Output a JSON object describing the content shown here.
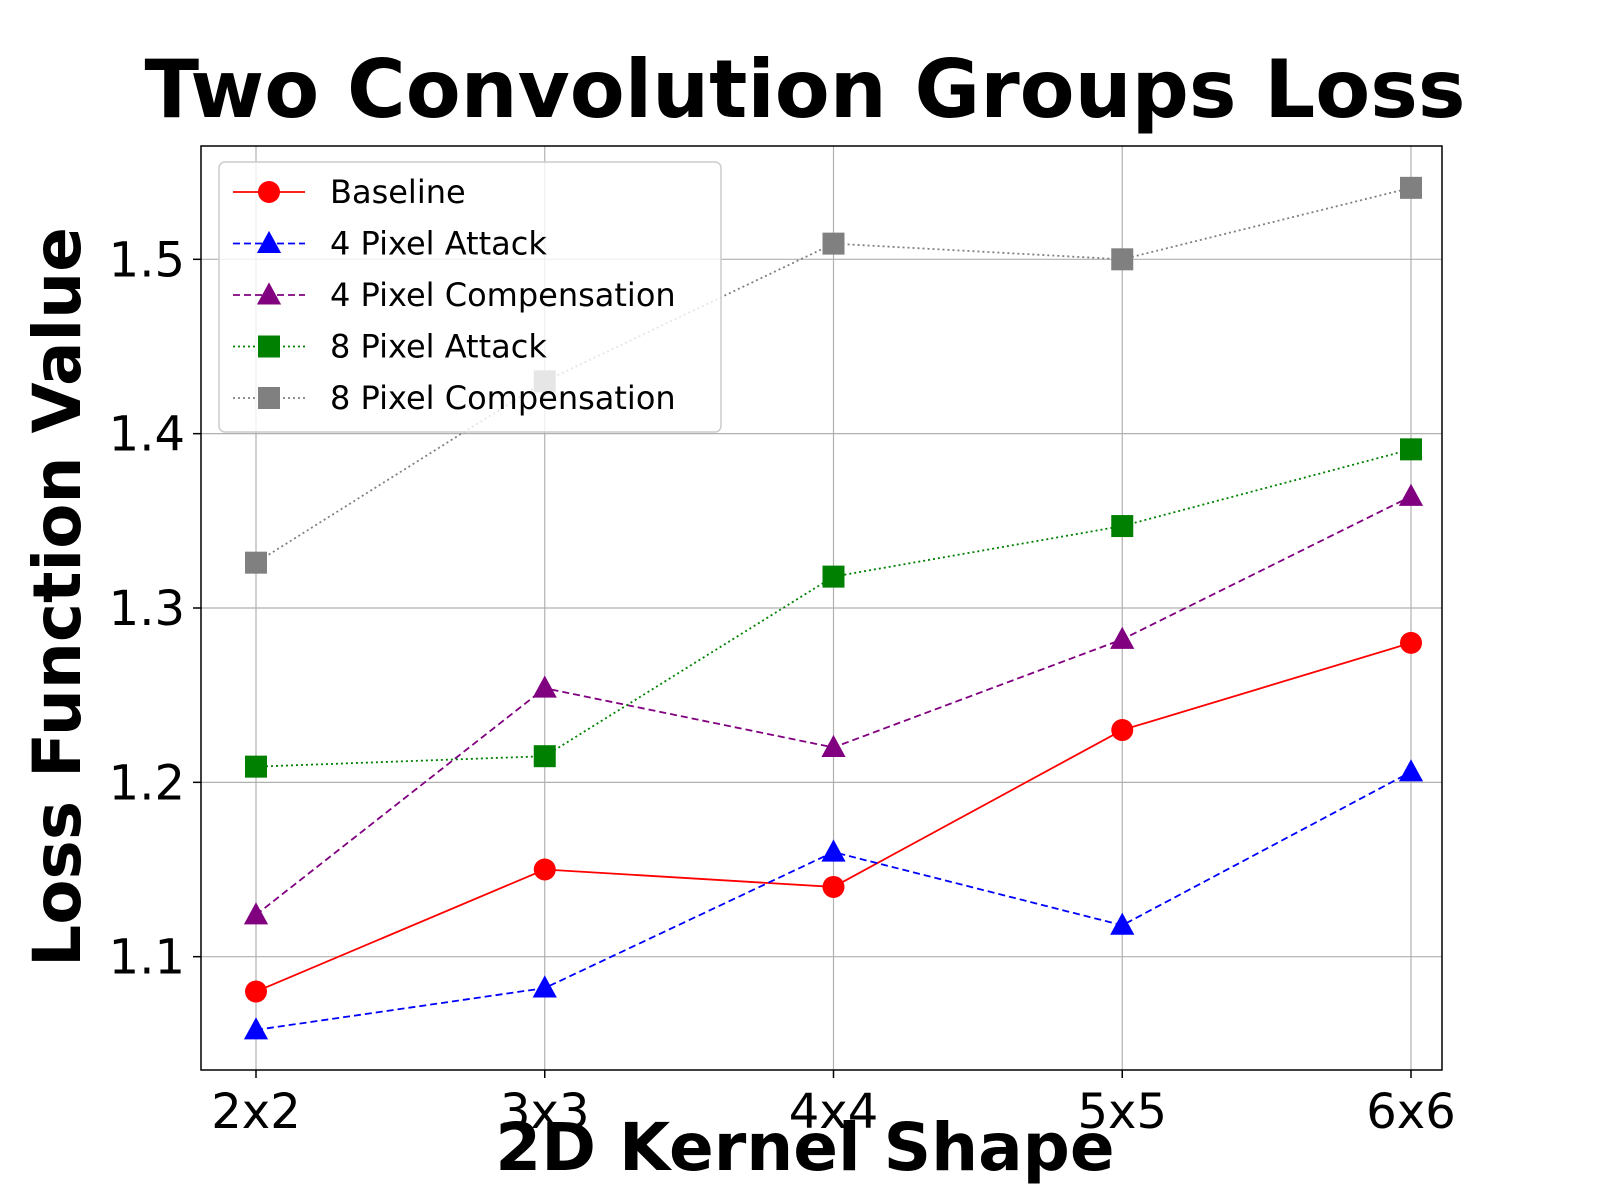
{
  "chart_data": {
    "type": "line",
    "title": "Two Convolution Groups Loss",
    "xlabel": "2D Kernel Shape",
    "ylabel": "Loss Function Value",
    "categories": [
      "2x2",
      "3x3",
      "4x4",
      "5x5",
      "6x6"
    ],
    "ylim": [
      1.035,
      1.565
    ],
    "yticks": [
      1.1,
      1.2,
      1.3,
      1.4,
      1.5
    ],
    "ytick_labels": [
      "1.1",
      "1.2",
      "1.3",
      "1.4",
      "1.5"
    ],
    "grid": true,
    "legend_position": "top-left",
    "series": [
      {
        "name": "Baseline",
        "values": [
          1.08,
          1.15,
          1.14,
          1.23,
          1.28
        ],
        "color": "#ff0000",
        "marker": "circle",
        "line": "solid"
      },
      {
        "name": "4 Pixel Attack",
        "values": [
          1.058,
          1.082,
          1.16,
          1.118,
          1.206
        ],
        "color": "#0000ff",
        "marker": "triangle",
        "line": "dashed"
      },
      {
        "name": "4 Pixel Compensation",
        "values": [
          1.124,
          1.254,
          1.22,
          1.282,
          1.364
        ],
        "color": "#800080",
        "marker": "triangle",
        "line": "dashed"
      },
      {
        "name": "8 Pixel Attack",
        "values": [
          1.209,
          1.215,
          1.318,
          1.347,
          1.391
        ],
        "color": "#008000",
        "marker": "square",
        "line": "dotted"
      },
      {
        "name": "8 Pixel Compensation",
        "values": [
          1.326,
          1.43,
          1.509,
          1.5,
          1.541
        ],
        "color": "#808080",
        "marker": "square",
        "line": "dotted"
      }
    ]
  }
}
